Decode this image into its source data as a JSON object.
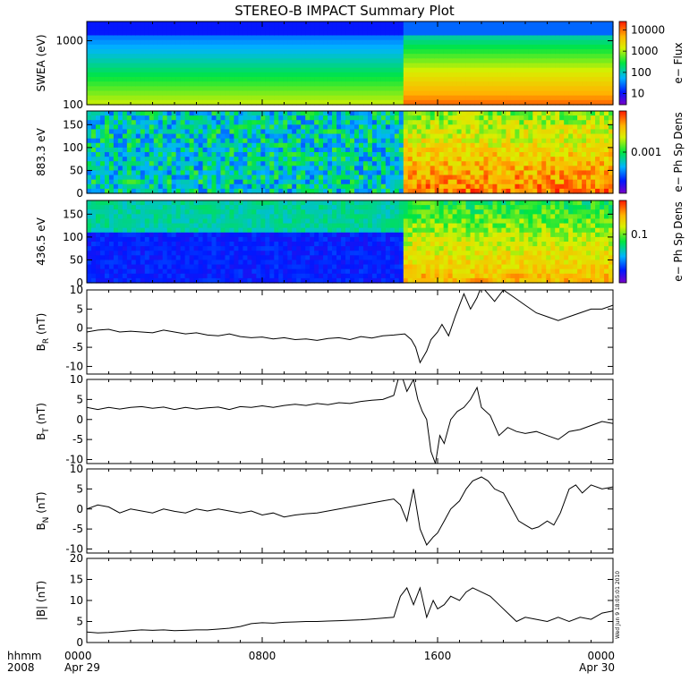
{
  "title": "STEREO-B IMPACT Summary Plot",
  "time_axis": {
    "label_line1": "hhmm",
    "label_line2": "2008",
    "ticks": [
      {
        "hour": 0,
        "time": "0000",
        "date": "Apr 29"
      },
      {
        "hour": 8,
        "time": "0800",
        "date": ""
      },
      {
        "hour": 16,
        "time": "1600",
        "date": ""
      },
      {
        "hour": 24,
        "time": "0000",
        "date": "Apr 30"
      }
    ],
    "range_hours": [
      0,
      24
    ]
  },
  "stamp": "Wed Jun  9 18:05:01 2010",
  "colors": {
    "line": "#000000",
    "background": "#ffffff"
  },
  "chart_data": [
    {
      "type": "heatmap",
      "ylabel": "SWEA (eV)",
      "yscale": "log",
      "ylim": [
        100,
        2000
      ],
      "yticks": [
        "100",
        "1000"
      ],
      "yticks_values": [
        100,
        1000
      ],
      "colorbar_label": "e− Flux",
      "colorbar_ticks": [
        "10",
        "100",
        "1000",
        "10000"
      ],
      "colorbar_scale": "log",
      "colorbar_range": [
        3,
        25000
      ],
      "transition_hour": 14.5
    },
    {
      "type": "heatmap",
      "ylabel": "883.3 eV",
      "ylim": [
        0,
        180
      ],
      "yticks": [
        "0",
        "50",
        "100",
        "150"
      ],
      "yticks_values": [
        0,
        50,
        100,
        150
      ],
      "colorbar_label": "e− Ph Sp Dens",
      "colorbar_ticks": [
        "0.001"
      ],
      "colorbar_scale": "log",
      "colorbar_range": [
        0.0001,
        0.01
      ]
    },
    {
      "type": "heatmap",
      "ylabel": "436.5 eV",
      "ylim": [
        0,
        180
      ],
      "yticks": [
        "0",
        "50",
        "100",
        "150"
      ],
      "yticks_values": [
        0,
        50,
        100,
        150
      ],
      "colorbar_label": "e− Ph Sp Dens",
      "colorbar_ticks": [
        "0.1"
      ],
      "colorbar_scale": "log",
      "colorbar_range": [
        0.01,
        0.5
      ]
    },
    {
      "type": "line",
      "ylabel_main": "B",
      "ylabel_sub": "R",
      "ylabel_unit": " (nT)",
      "ylim": [
        -12,
        10
      ],
      "yticks": [
        "-10",
        "-5",
        "0",
        "5",
        "10"
      ],
      "yticks_values": [
        -10,
        -5,
        0,
        5,
        10
      ],
      "x": [
        0,
        0.5,
        1,
        1.5,
        2,
        2.5,
        3,
        3.5,
        4,
        4.5,
        5,
        5.5,
        6,
        6.5,
        7,
        7.5,
        8,
        8.5,
        9,
        9.5,
        10,
        10.5,
        11,
        11.5,
        12,
        12.5,
        13,
        13.5,
        14,
        14.5,
        14.8,
        15,
        15.2,
        15.5,
        15.7,
        16,
        16.2,
        16.5,
        16.8,
        17,
        17.2,
        17.5,
        17.8,
        18,
        18.3,
        18.6,
        19,
        19.5,
        20,
        20.5,
        21,
        21.5,
        22,
        22.5,
        23,
        23.5,
        24
      ],
      "values": [
        -1,
        -0.5,
        -0.3,
        -1,
        -0.8,
        -1,
        -1.2,
        -0.5,
        -1,
        -1.5,
        -1.2,
        -1.8,
        -2,
        -1.5,
        -2.2,
        -2.5,
        -2.3,
        -2.8,
        -2.5,
        -3,
        -2.8,
        -3.2,
        -2.7,
        -2.5,
        -3,
        -2.2,
        -2.6,
        -2,
        -1.8,
        -1.5,
        -3,
        -5,
        -9,
        -6,
        -3,
        -1,
        1,
        -2,
        3,
        6,
        9,
        5,
        8,
        11,
        9,
        7,
        10,
        8,
        6,
        4,
        3,
        2,
        3,
        4,
        5,
        5,
        6
      ]
    },
    {
      "type": "line",
      "ylabel_main": "B",
      "ylabel_sub": "T",
      "ylabel_unit": " (nT)",
      "ylim": [
        -11,
        10
      ],
      "yticks": [
        "-10",
        "-5",
        "0",
        "5",
        "10"
      ],
      "yticks_values": [
        -10,
        -5,
        0,
        5,
        10
      ],
      "x": [
        0,
        0.5,
        1,
        1.5,
        2,
        2.5,
        3,
        3.5,
        4,
        4.5,
        5,
        5.5,
        6,
        6.5,
        7,
        7.5,
        8,
        8.5,
        9,
        9.5,
        10,
        10.5,
        11,
        11.5,
        12,
        12.5,
        13,
        13.5,
        14,
        14.3,
        14.6,
        14.9,
        15.1,
        15.3,
        15.5,
        15.7,
        15.9,
        16.1,
        16.3,
        16.6,
        16.9,
        17.2,
        17.5,
        17.8,
        18,
        18.4,
        18.8,
        19.2,
        19.6,
        20,
        20.5,
        21,
        21.5,
        22,
        22.5,
        23,
        23.5,
        24
      ],
      "values": [
        3,
        2.5,
        3,
        2.6,
        3,
        3.2,
        2.8,
        3.1,
        2.5,
        3,
        2.6,
        2.9,
        3.1,
        2.5,
        3.2,
        3,
        3.4,
        3,
        3.5,
        3.8,
        3.5,
        4,
        3.7,
        4.2,
        4,
        4.5,
        4.8,
        5,
        6,
        12,
        7,
        10,
        5,
        2,
        0,
        -8,
        -11,
        -4,
        -6,
        0,
        2,
        3,
        5,
        8,
        3,
        1,
        -4,
        -2,
        -3,
        -3.5,
        -3,
        -4,
        -5,
        -3,
        -2.5,
        -1.5,
        -0.5,
        -1
      ]
    },
    {
      "type": "line",
      "ylabel_main": "B",
      "ylabel_sub": "N",
      "ylabel_unit": " (nT)",
      "ylim": [
        -11,
        10
      ],
      "yticks": [
        "-10",
        "-5",
        "0",
        "5",
        "10"
      ],
      "yticks_values": [
        -10,
        -5,
        0,
        5,
        10
      ],
      "x": [
        0,
        0.5,
        1,
        1.5,
        2,
        2.5,
        3,
        3.5,
        4,
        4.5,
        5,
        5.5,
        6,
        6.5,
        7,
        7.5,
        8,
        8.5,
        9,
        9.5,
        10,
        10.5,
        11,
        11.5,
        12,
        12.5,
        13,
        13.5,
        14,
        14.3,
        14.6,
        14.9,
        15.2,
        15.5,
        15.8,
        16,
        16.3,
        16.6,
        17,
        17.3,
        17.6,
        18,
        18.3,
        18.6,
        19,
        19.4,
        19.7,
        20,
        20.3,
        20.6,
        21,
        21.3,
        21.6,
        22,
        22.3,
        22.6,
        23,
        23.5,
        24
      ],
      "values": [
        0,
        1,
        0.5,
        -1,
        0,
        -0.5,
        -1,
        0,
        -0.6,
        -1,
        0,
        -0.5,
        0,
        -0.5,
        -1,
        -0.5,
        -1.5,
        -1,
        -2,
        -1.5,
        -1.2,
        -1,
        -0.5,
        0,
        0.5,
        1,
        1.5,
        2,
        2.5,
        1,
        -3,
        5,
        -5,
        -9,
        -7,
        -6,
        -3,
        0,
        2,
        5,
        7,
        8,
        7,
        5,
        4,
        0,
        -3,
        -4,
        -5,
        -4.5,
        -3,
        -4,
        -1,
        5,
        6,
        4,
        6,
        5,
        5.5
      ]
    },
    {
      "type": "line",
      "ylabel_main": "|B|",
      "ylabel_sub": "",
      "ylabel_unit": " (nT)",
      "ylim": [
        0,
        20
      ],
      "yticks": [
        "0",
        "5",
        "10",
        "15",
        "20"
      ],
      "yticks_values": [
        0,
        5,
        10,
        15,
        20
      ],
      "x": [
        0,
        0.5,
        1,
        1.5,
        2,
        2.5,
        3,
        3.5,
        4,
        4.5,
        5,
        5.5,
        6,
        6.5,
        7,
        7.5,
        8,
        8.5,
        9,
        9.5,
        10,
        10.5,
        11,
        11.5,
        12,
        12.5,
        13,
        13.5,
        14,
        14.3,
        14.6,
        14.9,
        15.2,
        15.5,
        15.8,
        16,
        16.3,
        16.6,
        17,
        17.3,
        17.6,
        18,
        18.4,
        18.8,
        19.2,
        19.6,
        20,
        20.5,
        21,
        21.5,
        22,
        22.5,
        23,
        23.5,
        24
      ],
      "values": [
        2.5,
        2.3,
        2.4,
        2.6,
        2.8,
        3,
        2.9,
        3,
        2.8,
        2.9,
        3,
        3,
        3.2,
        3.4,
        3.8,
        4.5,
        4.7,
        4.6,
        4.8,
        4.9,
        5,
        5,
        5.1,
        5.2,
        5.3,
        5.4,
        5.6,
        5.8,
        6,
        11,
        13,
        9,
        13,
        6,
        10,
        8,
        9,
        11,
        10,
        12,
        13,
        12,
        11,
        9,
        7,
        5,
        6,
        5.5,
        5,
        6,
        5,
        6,
        5.5,
        7,
        7.5
      ]
    }
  ]
}
